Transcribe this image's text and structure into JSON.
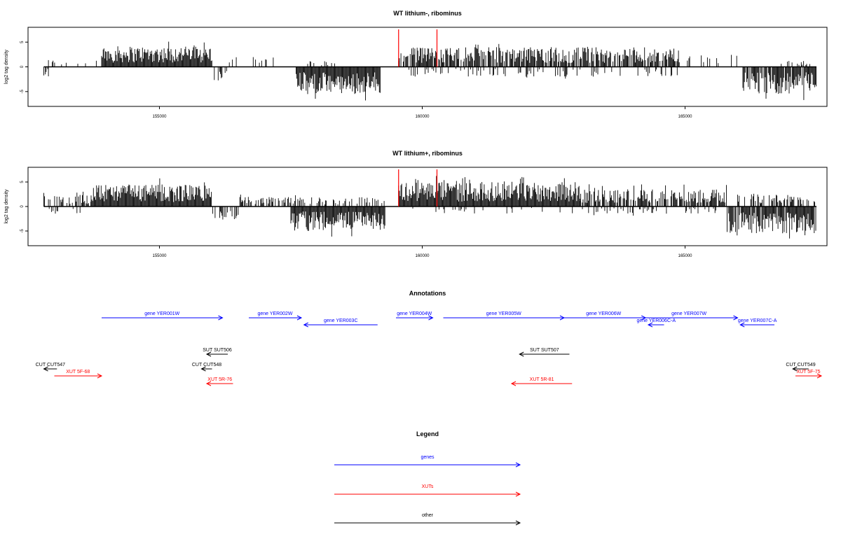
{
  "chart_data": [
    {
      "type": "bar",
      "title": "WT lithium-, ribominus",
      "ylabel": "log2 tag density",
      "xlim": [
        152500,
        167700
      ],
      "ylim": [
        -8,
        8
      ],
      "xticks": [
        155000,
        160000,
        165000
      ],
      "yticks": [
        -5,
        0,
        5
      ],
      "data_range": [
        152800,
        167500
      ],
      "markers": [
        159550,
        160280
      ],
      "marker_color": "#ff0000",
      "bar_color": "#000000",
      "segments": [
        {
          "start": 152800,
          "end": 153300,
          "dir": 1,
          "amp": 1.5,
          "density": 0.25
        },
        {
          "start": 152800,
          "end": 152900,
          "dir": -1,
          "amp": 2.0,
          "density": 0.6
        },
        {
          "start": 153300,
          "end": 153900,
          "dir": 1,
          "amp": 1.0,
          "density": 0.1
        },
        {
          "start": 153900,
          "end": 156000,
          "dir": 1,
          "amp": 4.2,
          "density": 1.0
        },
        {
          "start": 156000,
          "end": 156300,
          "dir": -1,
          "amp": 3.0,
          "density": 0.4
        },
        {
          "start": 156300,
          "end": 157300,
          "dir": 1,
          "amp": 2.0,
          "density": 0.2
        },
        {
          "start": 157600,
          "end": 159200,
          "dir": -1,
          "amp": 5.5,
          "density": 1.0
        },
        {
          "start": 157600,
          "end": 158600,
          "dir": 1,
          "amp": 1.2,
          "density": 0.15
        },
        {
          "start": 159550,
          "end": 164900,
          "dir": 1,
          "amp": 4.0,
          "density": 0.8
        },
        {
          "start": 159600,
          "end": 164900,
          "dir": -1,
          "amp": 2.0,
          "density": 0.2
        },
        {
          "start": 165000,
          "end": 166000,
          "dir": 1,
          "amp": 2.5,
          "density": 0.25
        },
        {
          "start": 166100,
          "end": 167500,
          "dir": -1,
          "amp": 5.5,
          "density": 0.9
        },
        {
          "start": 166800,
          "end": 167400,
          "dir": 1,
          "amp": 1.2,
          "density": 0.3
        }
      ]
    },
    {
      "type": "bar",
      "title": "WT lithium+, ribominus",
      "ylabel": "log2 tag density",
      "xlim": [
        152500,
        167700
      ],
      "ylim": [
        -8,
        8
      ],
      "xticks": [
        155000,
        160000,
        165000
      ],
      "yticks": [
        -5,
        0,
        5
      ],
      "data_range": [
        152800,
        167500
      ],
      "markers": [
        159550,
        160280
      ],
      "marker_color": "#ff0000",
      "bar_color": "#000000",
      "segments": [
        {
          "start": 152800,
          "end": 153700,
          "dir": 1,
          "amp": 2.5,
          "density": 0.4
        },
        {
          "start": 152800,
          "end": 153500,
          "dir": -1,
          "amp": 1.5,
          "density": 0.2
        },
        {
          "start": 153700,
          "end": 156000,
          "dir": 1,
          "amp": 4.5,
          "density": 1.0
        },
        {
          "start": 156000,
          "end": 156500,
          "dir": -1,
          "amp": 3.0,
          "density": 0.5
        },
        {
          "start": 156500,
          "end": 157500,
          "dir": 1,
          "amp": 2.0,
          "density": 0.4
        },
        {
          "start": 157500,
          "end": 159300,
          "dir": -1,
          "amp": 5.0,
          "density": 1.0
        },
        {
          "start": 157500,
          "end": 159300,
          "dir": 1,
          "amp": 2.0,
          "density": 0.3
        },
        {
          "start": 159550,
          "end": 163000,
          "dir": 1,
          "amp": 5.0,
          "density": 1.0
        },
        {
          "start": 163000,
          "end": 165800,
          "dir": 1,
          "amp": 3.5,
          "density": 0.7
        },
        {
          "start": 159600,
          "end": 165800,
          "dir": -1,
          "amp": 1.5,
          "density": 0.15
        },
        {
          "start": 165800,
          "end": 167500,
          "dir": -1,
          "amp": 5.5,
          "density": 0.9
        },
        {
          "start": 166000,
          "end": 167500,
          "dir": 1,
          "amp": 2.5,
          "density": 0.35
        }
      ]
    }
  ],
  "annotations": {
    "title": "Annotations",
    "items": [
      {
        "kind": "gene",
        "label": "gene YER001W",
        "start": 153900,
        "end": 156200,
        "dir": "right",
        "row": 0
      },
      {
        "kind": "gene",
        "label": "gene YER002W",
        "start": 156700,
        "end": 157700,
        "dir": "right",
        "row": 0
      },
      {
        "kind": "gene",
        "label": "gene YER003C",
        "start": 157750,
        "end": 159150,
        "dir": "left",
        "row": 1
      },
      {
        "kind": "gene",
        "label": "gene YER004W",
        "start": 159500,
        "end": 160200,
        "dir": "right",
        "row": 0
      },
      {
        "kind": "gene",
        "label": "gene YER005W",
        "start": 160400,
        "end": 162700,
        "dir": "right",
        "row": 0
      },
      {
        "kind": "gene",
        "label": "gene YER006W",
        "start": 162650,
        "end": 164250,
        "dir": "right",
        "row": 0
      },
      {
        "kind": "gene",
        "label": "gene YER006C-A",
        "start": 164300,
        "end": 164600,
        "dir": "left",
        "row": 1
      },
      {
        "kind": "gene",
        "label": "gene YER007W",
        "start": 164150,
        "end": 166000,
        "dir": "right",
        "row": 0
      },
      {
        "kind": "gene",
        "label": "gene YER007C-A",
        "start": 166050,
        "end": 166700,
        "dir": "left",
        "row": 1
      },
      {
        "kind": "other",
        "label": "SUT SUT506",
        "start": 155900,
        "end": 156300,
        "dir": "left",
        "row": 2
      },
      {
        "kind": "other",
        "label": "SUT SUT507",
        "start": 161850,
        "end": 162800,
        "dir": "left",
        "row": 2
      },
      {
        "kind": "other",
        "label": "CUT CUT547",
        "start": 152800,
        "end": 153050,
        "dir": "left",
        "row": 3
      },
      {
        "kind": "other",
        "label": "CUT CUT548",
        "start": 155800,
        "end": 156000,
        "dir": "left",
        "row": 3
      },
      {
        "kind": "other",
        "label": "CUT CUT549",
        "start": 167050,
        "end": 167350,
        "dir": "left",
        "row": 3
      },
      {
        "kind": "xut",
        "label": "XUT 5F-68",
        "start": 153000,
        "end": 153900,
        "dir": "right",
        "row": 4
      },
      {
        "kind": "xut",
        "label": "XUT 5R-76",
        "start": 155900,
        "end": 156400,
        "dir": "left",
        "row": 5
      },
      {
        "kind": "xut",
        "label": "XUT 5R-81",
        "start": 161700,
        "end": 162850,
        "dir": "left",
        "row": 5
      },
      {
        "kind": "xut",
        "label": "XUT 5F-75",
        "start": 167100,
        "end": 167950,
        "dir": "right",
        "row": 4
      }
    ]
  },
  "legend": {
    "title": "Legend",
    "items": [
      {
        "kind": "gene",
        "label": "genes"
      },
      {
        "kind": "xut",
        "label": "XUTs"
      },
      {
        "kind": "other",
        "label": "other"
      }
    ]
  },
  "colors": {
    "gene": "#0000ff",
    "xut": "#ff0000",
    "other": "#000000",
    "frame": "#000000"
  }
}
